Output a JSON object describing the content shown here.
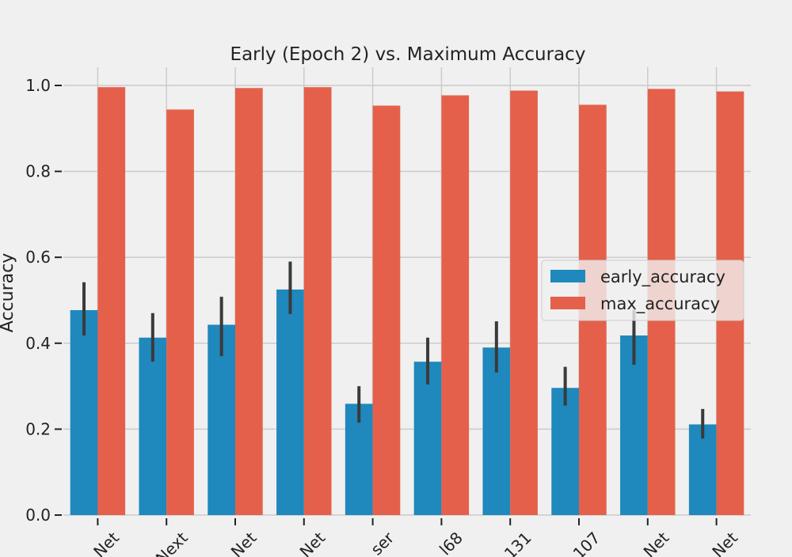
{
  "chart_data": {
    "type": "bar",
    "title": "Early (Epoch 2) vs. Maximum Accuracy",
    "xlabel": "",
    "ylabel": "Accuracy",
    "ylim": [
      0,
      1.04
    ],
    "yticks": [
      "0.0",
      "0.2",
      "0.4",
      "0.6",
      "0.8",
      "1.0"
    ],
    "categories": [
      "Net",
      "Next",
      "Net",
      "Net",
      "ser",
      "l68",
      "131",
      "107",
      "Net",
      "Net"
    ],
    "series": [
      {
        "name": "early_accuracy",
        "color": "#1f88bd",
        "values": [
          0.477,
          0.413,
          0.443,
          0.525,
          0.259,
          0.357,
          0.39,
          0.296,
          0.418,
          0.211
        ],
        "err_low": [
          0.418,
          0.357,
          0.37,
          0.468,
          0.215,
          0.304,
          0.332,
          0.255,
          0.35,
          0.178
        ],
        "err_high": [
          0.542,
          0.47,
          0.508,
          0.59,
          0.3,
          0.413,
          0.451,
          0.345,
          0.478,
          0.247
        ]
      },
      {
        "name": "max_accuracy",
        "color": "#e5604a",
        "values": [
          0.996,
          0.944,
          0.994,
          0.996,
          0.953,
          0.977,
          0.988,
          0.955,
          0.992,
          0.986
        ]
      }
    ],
    "grid": true,
    "legend_position": "center-right"
  }
}
